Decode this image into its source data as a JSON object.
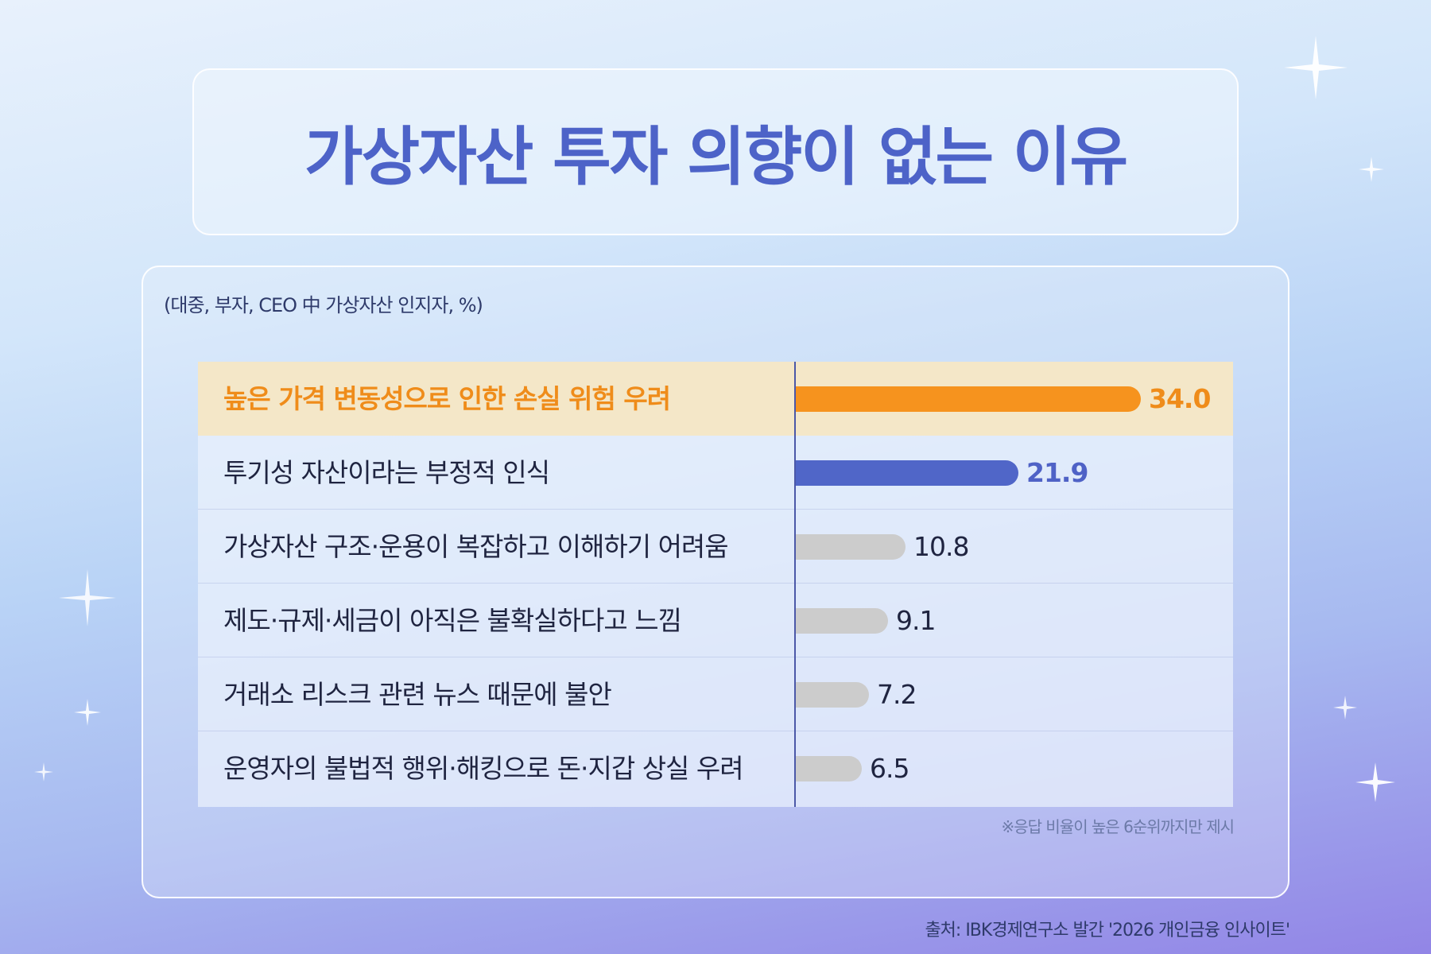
{
  "title": "가상자산 투자 의향이 없는 이유",
  "subtitle": "(대중, 부자, CEO 中 가상자산 인지자, %)",
  "footnote": "※응답 비율이 높은 6순위까지만 제시",
  "source": "출처: IBK경제연구소 발간 '2026 개인금융 인사이트'",
  "colors": {
    "title": "#4d63c8",
    "highlight_bar": "#f6931e",
    "second_bar": "#5066c8",
    "other_bar": "#cccccc",
    "highlight_row": "#f4e7c8"
  },
  "chart_data": {
    "type": "bar",
    "orientation": "horizontal",
    "unit": "%",
    "categories": [
      "높은 가격 변동성으로 인한 손실 위험 우려",
      "투기성 자산이라는 부정적 인식",
      "가상자산 구조·운용이 복잡하고 이해하기 어려움",
      "제도·규제·세금이 아직은 불확실하다고 느낌",
      "거래소 리스크 관련 뉴스 때문에 불안",
      "운영자의 불법적 행위·해킹으로 돈·지갑 상실 우려"
    ],
    "values": [
      34.0,
      21.9,
      10.8,
      9.1,
      7.2,
      6.5
    ],
    "value_labels": [
      "34.0",
      "21.9",
      "10.8",
      "9.1",
      "7.2",
      "6.5"
    ],
    "xlim": [
      0,
      34.0
    ],
    "highlight": [
      0,
      1
    ]
  }
}
